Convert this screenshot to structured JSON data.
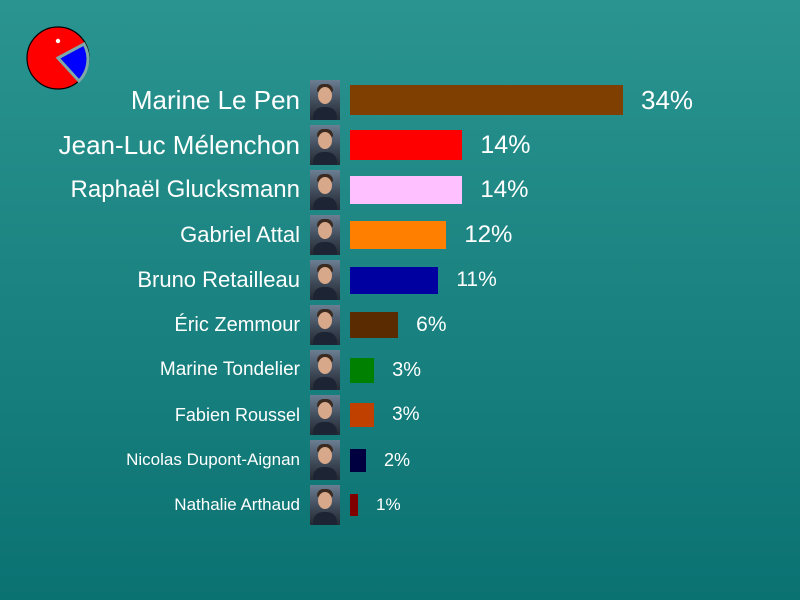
{
  "chart_data": {
    "type": "bar",
    "orientation": "horizontal",
    "categories": [
      "Marine Le Pen",
      "Jean-Luc Mélenchon",
      "Raphaël Glucksmann",
      "Gabriel Attal",
      "Bruno Retailleau",
      "Éric Zemmour",
      "Marine Tondelier",
      "Fabien Roussel",
      "Nicolas Dupont-Aignan",
      "Nathalie Arthaud"
    ],
    "values": [
      34,
      14,
      14,
      12,
      11,
      6,
      3,
      3,
      2,
      1
    ],
    "value_labels": [
      "34%",
      "14%",
      "14%",
      "12%",
      "11%",
      "6%",
      "3%",
      "3%",
      "2%",
      "1%"
    ],
    "colors": [
      "#7f3f00",
      "#ff0000",
      "#ffc0ff",
      "#ff8000",
      "#0000a0",
      "#5a2a00",
      "#008000",
      "#c04000",
      "#000040",
      "#800000"
    ],
    "unit": "%",
    "title": "",
    "xlabel": "",
    "ylabel": "",
    "grid": false,
    "legend": "none"
  },
  "logo": {
    "icon": "pie-logo-icon",
    "colors": [
      "#ff0000",
      "#0000ff",
      "#ffffff"
    ]
  }
}
